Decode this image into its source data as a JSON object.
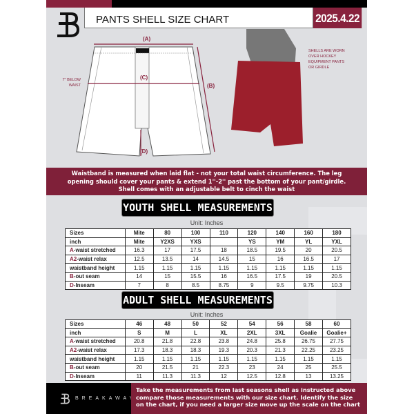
{
  "header": {
    "title": "PANTS SHELL SIZE CHART",
    "date": "2025.4.22"
  },
  "colors": {
    "brand_red": "#88223d",
    "black": "#000000",
    "background": "#dedfe2"
  },
  "diagram": {
    "label_a": "(A)",
    "label_b": "(B)",
    "label_c": "(C)",
    "label_d": "(D)",
    "below_waist_line1": "7'' BELOW",
    "below_waist_line2": "WAIST",
    "note_lines": [
      "SHELLS ARE WORN",
      "OVER HOCKEY",
      "EQUIPMENT PANTS",
      "OR GIRDLE"
    ]
  },
  "info_band": {
    "lines": [
      "Waistband is measured when laid flat - not your total waist circumference. The leg",
      "opening should cover your pants & extend 1''-2'' past the bottom of your pant/girdle.",
      "Shell comes with an adjustable belt to cinch the waist"
    ]
  },
  "youth": {
    "title": "YOUTH SHELL MEASUREMENTS",
    "unit": "Unit: Inches",
    "rows": [
      {
        "prefix": "",
        "label": "Sizes",
        "values": [
          "Mite",
          "80",
          "100",
          "110",
          "120",
          "140",
          "160",
          "180"
        ]
      },
      {
        "prefix": "",
        "label": "inch",
        "values": [
          "Mite",
          "Y2XS",
          "YXS",
          "",
          "YS",
          "YM",
          "YL",
          "YXL"
        ]
      },
      {
        "prefix": "A",
        "label": "-waist stretched",
        "values": [
          "16.3",
          "17",
          "17.5",
          "18",
          "18.5",
          "19.5",
          "20",
          "20.5"
        ]
      },
      {
        "prefix": "A2",
        "label": "-waist relax",
        "values": [
          "12.5",
          "13.5",
          "14",
          "14.5",
          "15",
          "16",
          "16.5",
          "17"
        ]
      },
      {
        "prefix": "",
        "label": "waistband height",
        "values": [
          "1.15",
          "1.15",
          "1.15",
          "1.15",
          "1.15",
          "1.15",
          "1.15",
          "1.15"
        ]
      },
      {
        "prefix": "B",
        "label": "-out seam",
        "values": [
          "14",
          "15",
          "15.5",
          "16",
          "16.5",
          "17.5",
          "19",
          "20.5"
        ]
      },
      {
        "prefix": "D",
        "label": "-Inseam",
        "values": [
          "7",
          "8",
          "8.5",
          "8.75",
          "9",
          "9.5",
          "9.75",
          "10.3"
        ]
      }
    ]
  },
  "adult": {
    "title": "ADULT SHELL MEASUREMENTS",
    "unit": "Unit: Inches",
    "rows": [
      {
        "prefix": "",
        "label": "Sizes",
        "values": [
          "46",
          "48",
          "50",
          "52",
          "54",
          "56",
          "58",
          "60"
        ]
      },
      {
        "prefix": "",
        "label": "inch",
        "values": [
          "S",
          "M",
          "L",
          "XL",
          "2XL",
          "3XL",
          "Goalie",
          "Goalie+"
        ]
      },
      {
        "prefix": "A",
        "label": "-waist stretched",
        "values": [
          "20.8",
          "21.8",
          "22.8",
          "23.8",
          "24.8",
          "25.8",
          "26.75",
          "27.75"
        ]
      },
      {
        "prefix": "A2",
        "label": "-waist relax",
        "values": [
          "17.3",
          "18.3",
          "18.3",
          "19.3",
          "20.3",
          "21.3",
          "22.25",
          "23.25"
        ]
      },
      {
        "prefix": "",
        "label": "waistband height",
        "values": [
          "1.15",
          "1.15",
          "1.15",
          "1.15",
          "1.15",
          "1.15",
          "1.15",
          "1.15"
        ]
      },
      {
        "prefix": "B",
        "label": "-out seam",
        "values": [
          "20",
          "21.5",
          "21",
          "22.3",
          "23",
          "24",
          "25",
          "25.5"
        ]
      },
      {
        "prefix": "D",
        "label": "-Inseam",
        "values": [
          "11",
          "11.3",
          "11.3",
          "12",
          "12.5",
          "12.8",
          "13",
          "13.25"
        ]
      }
    ]
  },
  "footer": {
    "brand": "BREAKAWAY",
    "lines": [
      "Take the measurements from last seasons shell as instructed above",
      "compare those measurements  with our size chart. Identify the size",
      "on the chart, if you need a larger size move up the scale on the chart"
    ]
  }
}
